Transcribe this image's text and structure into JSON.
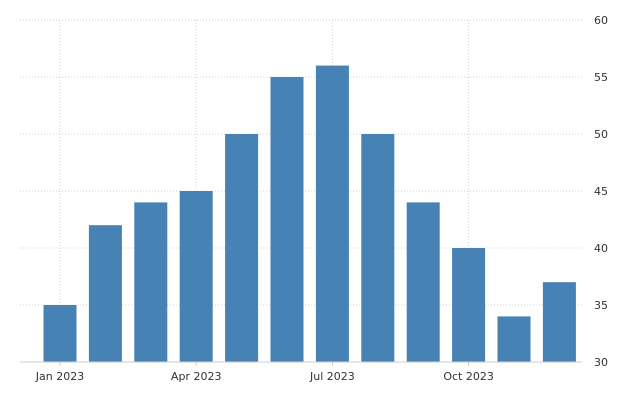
{
  "chart_data": {
    "type": "bar",
    "categories": [
      "2023-01",
      "2023-02",
      "2023-03",
      "2023-04",
      "2023-05",
      "2023-06",
      "2023-07",
      "2023-08",
      "2023-09",
      "2023-10",
      "2023-11",
      "2023-12"
    ],
    "values": [
      35,
      42,
      44,
      45,
      50,
      55,
      56,
      50,
      44,
      40,
      34,
      37
    ],
    "x_tick_labels": [
      {
        "category": "2023-01",
        "label": "Jan 2023"
      },
      {
        "category": "2023-04",
        "label": "Apr 2023"
      },
      {
        "category": "2023-07",
        "label": "Jul 2023"
      },
      {
        "category": "2023-10",
        "label": "Oct 2023"
      }
    ],
    "y_ticks": [
      30,
      35,
      40,
      45,
      50,
      55,
      60
    ],
    "ylim": [
      30,
      60
    ],
    "y_axis_side": "right",
    "grid": true,
    "bar_color": "#4682b4",
    "title": "",
    "xlabel": "",
    "ylabel": ""
  }
}
